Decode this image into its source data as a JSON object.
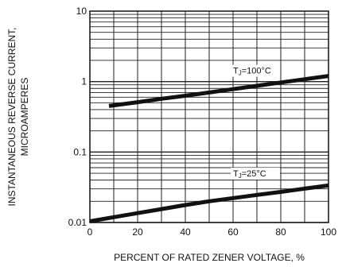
{
  "chart_data": {
    "type": "line",
    "ylabel_line1": "INSTANTANEOUS REVERSE CURRENT,",
    "ylabel_line2": "MICROAMPERES",
    "xlabel": "PERCENT OF RATED ZENER VOLTAGE, %",
    "xlim": [
      0,
      100
    ],
    "ylim": [
      0.01,
      10
    ],
    "y_scale": "log",
    "grid": true,
    "x_ticks": [
      0,
      20,
      40,
      60,
      80,
      100
    ],
    "x_tick_labels": [
      "0",
      "20",
      "40",
      "60",
      "80",
      "100"
    ],
    "y_ticks": [
      0.01,
      0.1,
      1,
      10
    ],
    "y_tick_labels": [
      "0.01",
      "0.1",
      "1",
      "10"
    ],
    "series": [
      {
        "name": "TJ=100°C",
        "label_prefix": "T",
        "label_subscript": "J",
        "label_suffix": "=100°C",
        "x": [
          8,
          20,
          30,
          40,
          50,
          60,
          70,
          80,
          90,
          100
        ],
        "y": [
          0.45,
          0.51,
          0.57,
          0.63,
          0.7,
          0.78,
          0.87,
          0.97,
          1.08,
          1.2
        ]
      },
      {
        "name": "TJ=25°C",
        "label_prefix": "T",
        "label_subscript": "J",
        "label_suffix": "=25°C",
        "x": [
          0,
          10,
          20,
          30,
          40,
          50,
          60,
          70,
          80,
          90,
          100
        ],
        "y": [
          0.0104,
          0.0119,
          0.0136,
          0.0155,
          0.0177,
          0.02,
          0.0222,
          0.0246,
          0.0272,
          0.0302,
          0.0335
        ]
      }
    ]
  }
}
